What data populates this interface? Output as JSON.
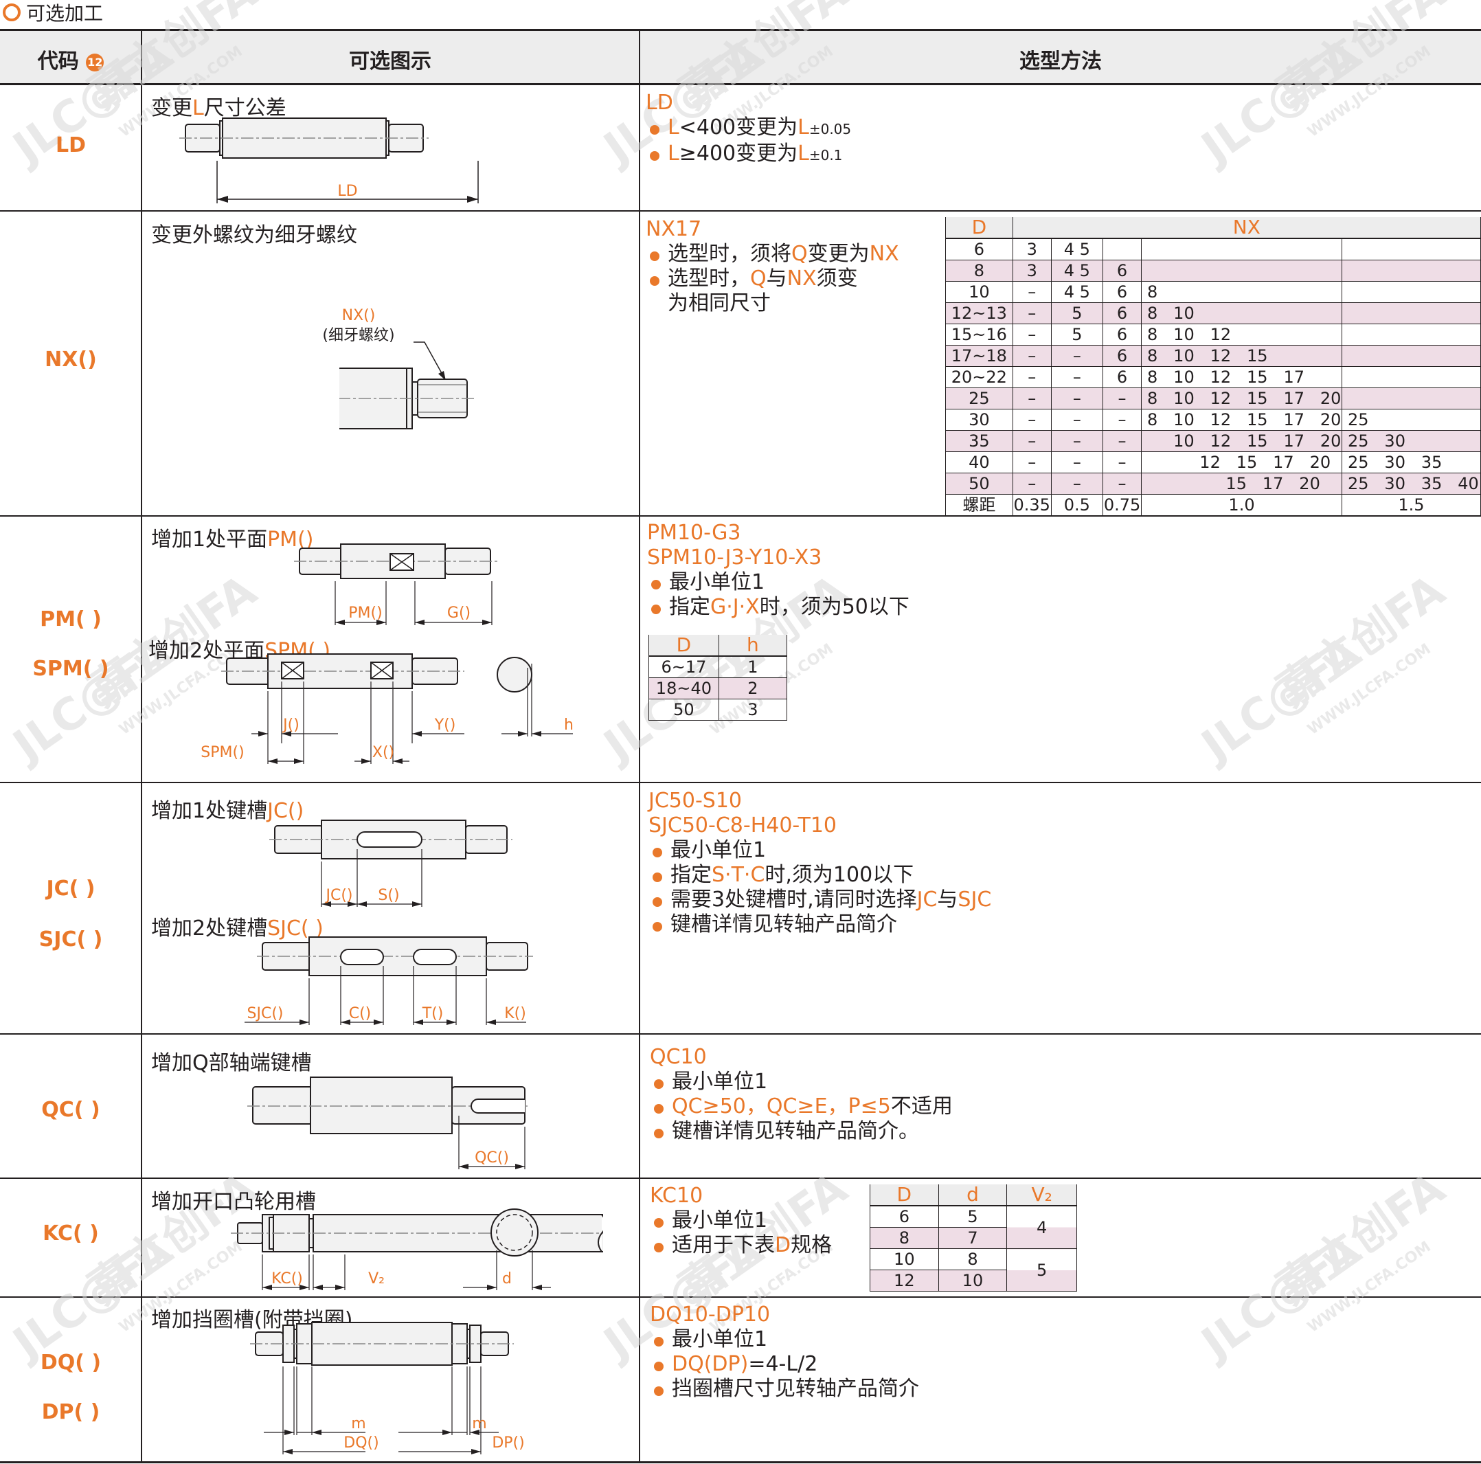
{
  "section_title": "可选加工",
  "header": {
    "code": "代码",
    "code_badge": "12",
    "diagram": "可选图示",
    "method": "选型方法"
  },
  "rows": {
    "ld": {
      "code": "LD",
      "diagram_title_a": "变更",
      "diagram_title_b": "L",
      "diagram_title_c": "尺寸公差",
      "dim_label": "LD",
      "example": "LD",
      "bullets": [
        {
          "p1": "L",
          "p2": "<400变更为",
          "p3": "L",
          "p4": "±0.05"
        },
        {
          "p1": "L",
          "p2": "≥400变更为",
          "p3": "L",
          "p4": "±0.1"
        }
      ]
    },
    "nx": {
      "code": "NX()",
      "diagram_title": "变更外螺纹为细牙螺纹",
      "callout": "NX()",
      "callout_sub": "(细牙螺纹)",
      "example": "NX17",
      "b1_a": "选型时，须将",
      "b1_b": "Q",
      "b1_c": "变更为",
      "b1_d": "NX",
      "b2_a": "选型时，",
      "b2_b": "Q",
      "b2_c": "与",
      "b2_d": "NX",
      "b2_e": "须变",
      "b2_f": "为相同尺寸",
      "table": {
        "head_d": "D",
        "head_nx": "NX",
        "rows": [
          [
            "6",
            "3",
            "4  5",
            "",
            "",
            ""
          ],
          [
            "8",
            "3",
            "4  5",
            "6",
            "",
            ""
          ],
          [
            "10",
            "–",
            "4  5",
            "6",
            "8",
            ""
          ],
          [
            "12~13",
            "–",
            "5",
            "6",
            "8   10",
            ""
          ],
          [
            "15~16",
            "–",
            "5",
            "6",
            "8   10   12",
            ""
          ],
          [
            "17~18",
            "–",
            "–",
            "6",
            "8   10   12   15",
            ""
          ],
          [
            "20~22",
            "–",
            "–",
            "6",
            "8   10   12   15   17",
            ""
          ],
          [
            "25",
            "–",
            "–",
            "–",
            "8   10   12   15   17   20",
            ""
          ],
          [
            "30",
            "–",
            "–",
            "–",
            "8   10   12   15   17   20",
            "25"
          ],
          [
            "35",
            "–",
            "–",
            "–",
            "     10   12   15   17   20",
            "25   30"
          ],
          [
            "40",
            "–",
            "–",
            "–",
            "          12   15   17   20",
            "25   30   35"
          ],
          [
            "50",
            "–",
            "–",
            "–",
            "               15   17   20",
            "25   30   35   40"
          ]
        ],
        "pitch": [
          "螺距",
          "0.35",
          "0.5",
          "0.75",
          "1.0",
          "1.5"
        ]
      }
    },
    "pm": {
      "code1": "PM( )",
      "code2": "SPM( )",
      "title1_a": "增加1处平面",
      "title1_b": "PM()",
      "title2_a": "增加2处平面",
      "title2_b": "SPM( )",
      "dims": {
        "pm": "PM()",
        "g": "G()",
        "j": "J()",
        "y": "Y()",
        "spm": "SPM()",
        "x": "X()",
        "h": "h"
      },
      "example1": "PM10-G3",
      "example2": "SPM10-J3-Y10-X3",
      "b1": "最小单位1",
      "b2_a": "指定",
      "b2_b": "G·J·X",
      "b2_c": "时，须为50以下",
      "table": {
        "head_d": "D",
        "head_h": "h",
        "rows": [
          [
            "6~17",
            "1"
          ],
          [
            "18~40",
            "2"
          ],
          [
            "50",
            "3"
          ]
        ]
      }
    },
    "jc": {
      "code1": "JC( )",
      "code2": "SJC( )",
      "title1_a": "增加1处键槽",
      "title1_b": "JC()",
      "title2_a": "增加2处键槽",
      "title2_b": "SJC( )",
      "dims": {
        "jc": "JC()",
        "s": "S()",
        "sjc": "SJC()",
        "c": "C()",
        "t": "T()",
        "k": "K()"
      },
      "example1": "JC50-S10",
      "example2": "SJC50-C8-H40-T10",
      "b1": "最小单位1",
      "b2_a": "指定",
      "b2_b": "S·T·C",
      "b2_c": "时,须为100以下",
      "b3_a": "需要3处键槽时,请同时选择",
      "b3_b": "JC",
      "b3_c": "与",
      "b3_d": "SJC",
      "b4": "键槽详情见转轴产品简介"
    },
    "qc": {
      "code": "QC( )",
      "title": "增加Q部轴端键槽",
      "dim": "QC()",
      "example": "QC10",
      "b1": "最小单位1",
      "b2_a": "QC≥50，QC≥E，P≤5",
      "b2_b": "不适用",
      "b3": "键槽详情见转轴产品简介。"
    },
    "kc": {
      "code": "KC( )",
      "title": "增加开口凸轮用槽",
      "dims": {
        "kc": "KC()",
        "v": "V₂",
        "d": "d"
      },
      "example": "KC10",
      "b1": "最小单位1",
      "b2_a": "适用于下表",
      "b2_b": "D",
      "b2_c": "规格",
      "table": {
        "head_d": "D",
        "head_dd": "d",
        "head_v": "V₂",
        "rows": [
          [
            "6",
            "5"
          ],
          [
            "8",
            "7"
          ],
          [
            "10",
            "8"
          ],
          [
            "12",
            "10"
          ]
        ],
        "v_values": [
          "4",
          "5"
        ]
      }
    },
    "dq": {
      "code1": "DQ( )",
      "code2": "DP( )",
      "title": "增加挡圈槽(附带挡圈)",
      "dims": {
        "m": "m",
        "dq": "DQ()",
        "dp": "DP()"
      },
      "example": "DQ10-DP10",
      "b1": "最小单位1",
      "b2_a": "DQ(DP)",
      "b2_b": "=4-L/2",
      "b3": "挡圈槽尺寸见转轴产品简介"
    }
  },
  "watermark": {
    "brand": "JLC@FA",
    "cn": "嘉立创FA",
    "url": "WWW.JLCFA.COM"
  },
  "colors": {
    "accent": "#e9782a",
    "pink": "#efdde6",
    "header_bg": "#ededed",
    "line": "#231f20"
  }
}
